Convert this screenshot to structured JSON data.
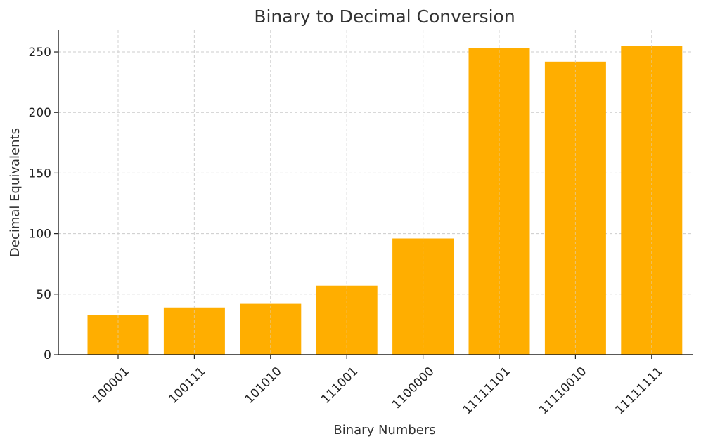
{
  "chart_data": {
    "type": "bar",
    "title": "Binary to Decimal Conversion",
    "xlabel": "Binary Numbers",
    "ylabel": "Decimal Equivalents",
    "categories": [
      "100001",
      "100111",
      "101010",
      "111001",
      "1100000",
      "11111101",
      "11110010",
      "11111111"
    ],
    "values": [
      33,
      39,
      42,
      57,
      96,
      253,
      242,
      255
    ],
    "ylim": [
      0,
      268
    ],
    "yticks": [
      "0",
      "50",
      "100",
      "150",
      "200",
      "250"
    ],
    "bar_color": "#FFAE00",
    "grid": true,
    "legend": "none"
  }
}
